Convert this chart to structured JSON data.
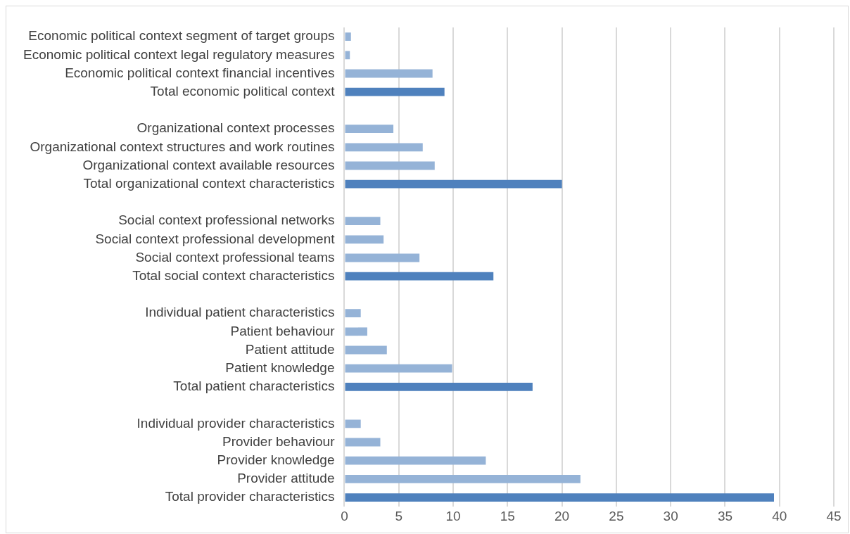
{
  "chart_data": {
    "type": "bar",
    "orientation": "horizontal",
    "categories": [
      "Economic political context segment of target groups",
      "Economic political context legal regulatory measures",
      "Economic political context financial incentives",
      "Total economic political context",
      null,
      "Organizational context processes",
      "Organizational context structures and work routines",
      "Organizational context available resources",
      "Total organizational context characteristics",
      null,
      "Social context professional networks",
      "Social context professional development",
      "Social context professional teams",
      "Total social context characteristics",
      null,
      "Individual patient characteristics",
      "Patient behaviour",
      "Patient attitude",
      "Patient knowledge",
      "Total patient characteristics",
      null,
      "Individual provider characteristics",
      "Provider behaviour",
      "Provider knowledge",
      "Provider attitude",
      "Total provider characteristics"
    ],
    "values": [
      0.6,
      0.5,
      8.1,
      9.2,
      null,
      4.5,
      7.2,
      8.3,
      20.0,
      null,
      3.3,
      3.6,
      6.9,
      13.7,
      null,
      1.5,
      2.1,
      3.9,
      9.9,
      17.3,
      null,
      1.5,
      3.3,
      13.0,
      21.7,
      39.5
    ],
    "colors": [
      "#95b3d7",
      "#95b3d7",
      "#95b3d7",
      "#4f81bd",
      null,
      "#95b3d7",
      "#95b3d7",
      "#95b3d7",
      "#4f81bd",
      null,
      "#95b3d7",
      "#95b3d7",
      "#95b3d7",
      "#4f81bd",
      null,
      "#95b3d7",
      "#95b3d7",
      "#95b3d7",
      "#95b3d7",
      "#4f81bd",
      null,
      "#95b3d7",
      "#95b3d7",
      "#95b3d7",
      "#95b3d7",
      "#4f81bd"
    ],
    "xlim": [
      0,
      45
    ],
    "xticks": [
      0,
      5,
      10,
      15,
      20,
      25,
      30,
      35,
      40,
      45
    ],
    "grid": "x",
    "legend": false
  }
}
